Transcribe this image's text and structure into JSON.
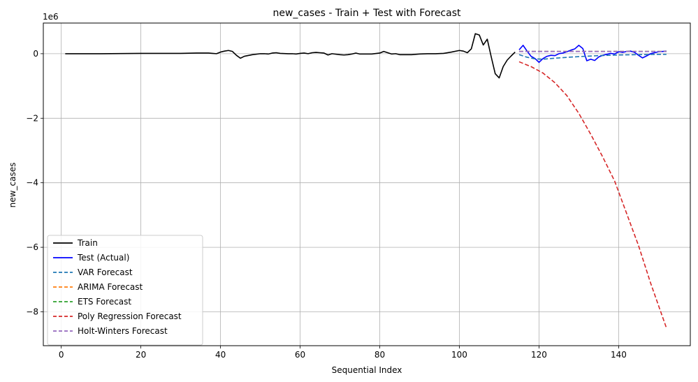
{
  "chart_data": {
    "type": "line",
    "title": "new_cases - Train + Test with Forecast",
    "xlabel": "Sequential Index",
    "ylabel": "new_cases",
    "y_scale_label": "1e6",
    "xlim": [
      -4.5,
      158
    ],
    "ylim": [
      -9.05,
      0.95
    ],
    "x_ticks": [
      0,
      20,
      40,
      60,
      80,
      100,
      120,
      140
    ],
    "x_tick_labels": [
      "0",
      "20",
      "40",
      "60",
      "80",
      "100",
      "120",
      "140"
    ],
    "y_ticks": [
      -8,
      -6,
      -4,
      -2,
      0
    ],
    "y_tick_labels": [
      "−8",
      "−6",
      "−4",
      "−2",
      "0"
    ],
    "grid": true,
    "legend_position": "lower-left",
    "series": [
      {
        "name": "Train",
        "color": "#000000",
        "style": "solid",
        "x": [
          1,
          10,
          20,
          30,
          34,
          37,
          38,
          39,
          40,
          41,
          42,
          43,
          44,
          45,
          46,
          48,
          50,
          51,
          52,
          53,
          54,
          55,
          57,
          58,
          59,
          60,
          61,
          62,
          63,
          64,
          65,
          66,
          67,
          68,
          70,
          71,
          72,
          73,
          74,
          75,
          76,
          78,
          80,
          81,
          82,
          83,
          84,
          85,
          86,
          88,
          90,
          92,
          94,
          96,
          98,
          100,
          101,
          102,
          103,
          104,
          105,
          106,
          107,
          108,
          109,
          110,
          111,
          112,
          113,
          114
        ],
        "values": [
          0.0,
          0.0,
          0.01,
          0.01,
          0.02,
          0.02,
          0.01,
          0.0,
          0.05,
          0.08,
          0.1,
          0.07,
          -0.05,
          -0.14,
          -0.08,
          -0.03,
          0.0,
          0.0,
          -0.01,
          0.02,
          0.03,
          0.01,
          0.0,
          0.0,
          -0.01,
          0.01,
          0.02,
          0.0,
          0.03,
          0.04,
          0.03,
          0.02,
          -0.04,
          0.0,
          -0.03,
          -0.04,
          -0.03,
          -0.01,
          0.02,
          -0.01,
          -0.01,
          -0.01,
          0.02,
          0.07,
          0.03,
          -0.01,
          0.0,
          -0.03,
          -0.03,
          -0.03,
          -0.01,
          0.0,
          0.0,
          0.01,
          0.05,
          0.1,
          0.08,
          0.03,
          0.15,
          0.62,
          0.58,
          0.27,
          0.45,
          -0.1,
          -0.62,
          -0.75,
          -0.4,
          -0.2,
          -0.07,
          0.05
        ]
      },
      {
        "name": "Test (Actual)",
        "color": "#0000ff",
        "style": "solid",
        "x": [
          115,
          116,
          117,
          118,
          119,
          120,
          121,
          122,
          123,
          124,
          125,
          126,
          127,
          128,
          129,
          130,
          131,
          132,
          133,
          134,
          135,
          136,
          137,
          138,
          139,
          140,
          141,
          142,
          143,
          144,
          145,
          146,
          147,
          148,
          149,
          150,
          151,
          152
        ],
        "values": [
          0.12,
          0.26,
          0.08,
          -0.08,
          -0.15,
          -0.27,
          -0.15,
          -0.08,
          -0.05,
          -0.06,
          0.0,
          0.02,
          0.06,
          0.11,
          0.15,
          0.26,
          0.16,
          -0.22,
          -0.17,
          -0.21,
          -0.1,
          -0.05,
          -0.02,
          0.01,
          -0.01,
          0.06,
          0.04,
          0.07,
          0.08,
          0.04,
          -0.05,
          -0.13,
          -0.07,
          0.0,
          0.03,
          0.06,
          0.07,
          0.08
        ]
      },
      {
        "name": "VAR Forecast",
        "color": "#1f77b4",
        "style": "dashed",
        "x": [
          115,
          117,
          119,
          121,
          123,
          125,
          130,
          135,
          140,
          145,
          150,
          152
        ],
        "values": [
          -0.03,
          -0.11,
          -0.16,
          -0.17,
          -0.15,
          -0.13,
          -0.09,
          -0.06,
          -0.04,
          -0.03,
          -0.02,
          -0.02
        ]
      },
      {
        "name": "ARIMA Forecast",
        "color": "#ff7f0e",
        "style": "dashed",
        "x": [
          115,
          152
        ],
        "values": [
          0.07,
          0.07
        ]
      },
      {
        "name": "ETS Forecast",
        "color": "#2ca02c",
        "style": "dashed",
        "x": [
          115,
          152
        ],
        "values": [
          0.07,
          0.07
        ]
      },
      {
        "name": "Poly Regression Forecast",
        "color": "#d62728",
        "style": "dashed",
        "x": [
          115,
          118,
          121,
          124,
          127,
          130,
          133,
          136,
          139,
          142,
          145,
          148,
          150,
          152
        ],
        "values": [
          -0.25,
          -0.4,
          -0.6,
          -0.9,
          -1.3,
          -1.85,
          -2.5,
          -3.2,
          -3.95,
          -4.95,
          -5.95,
          -7.1,
          -7.8,
          -8.5
        ]
      },
      {
        "name": "Holt-Winters Forecast",
        "color": "#9467bd",
        "style": "dashed",
        "x": [
          115,
          152
        ],
        "values": [
          0.07,
          0.07
        ]
      }
    ]
  }
}
